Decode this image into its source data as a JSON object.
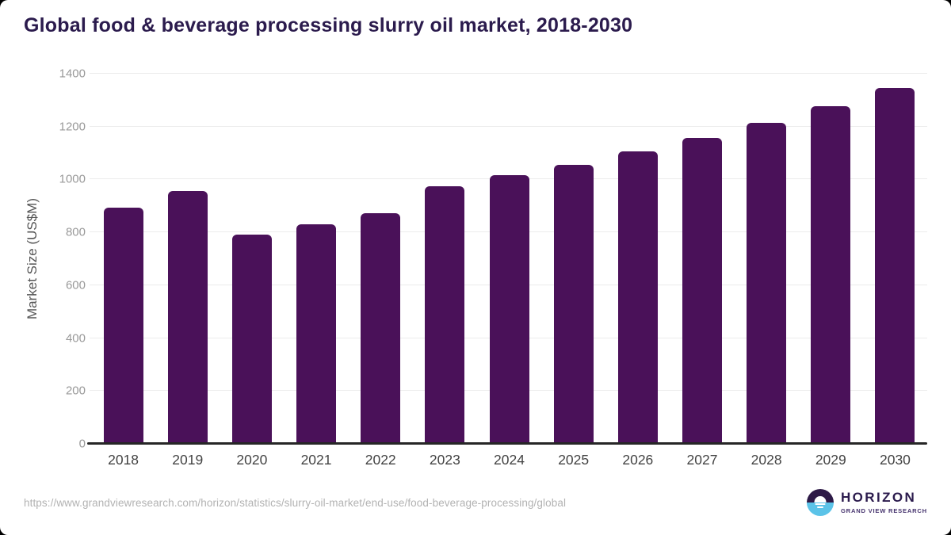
{
  "header": {
    "title": "Global food & beverage processing slurry oil market, 2018-2030"
  },
  "chart_data": {
    "type": "bar",
    "title": "Global food & beverage processing slurry oil market, 2018-2030",
    "categories": [
      "2018",
      "2019",
      "2020",
      "2021",
      "2022",
      "2023",
      "2024",
      "2025",
      "2026",
      "2027",
      "2028",
      "2029",
      "2030"
    ],
    "values": [
      893,
      955,
      790,
      831,
      873,
      973,
      1015,
      1056,
      1105,
      1158,
      1215,
      1277,
      1346
    ],
    "xlabel": "",
    "ylabel": "Market Size (US$M)",
    "ylim": [
      0,
      1400
    ],
    "ytick_step": 200,
    "grid": true,
    "legend": "none",
    "bar_color": "#4A1159"
  },
  "footer": {
    "source_url": "https://www.grandviewresearch.com/horizon/statistics/slurry-oil-market/end-use/food-beverage-processing/global",
    "logo": {
      "title": "HORIZON",
      "subtitle": "GRAND VIEW RESEARCH"
    }
  },
  "colors": {
    "bar": "#4A1159",
    "title_text": "#2B1B4D",
    "axis_line": "#262626",
    "gridline": "#ECECEC",
    "logo_circle_top": "#2E1A47",
    "logo_circle_bottom": "#5BC3E8"
  }
}
